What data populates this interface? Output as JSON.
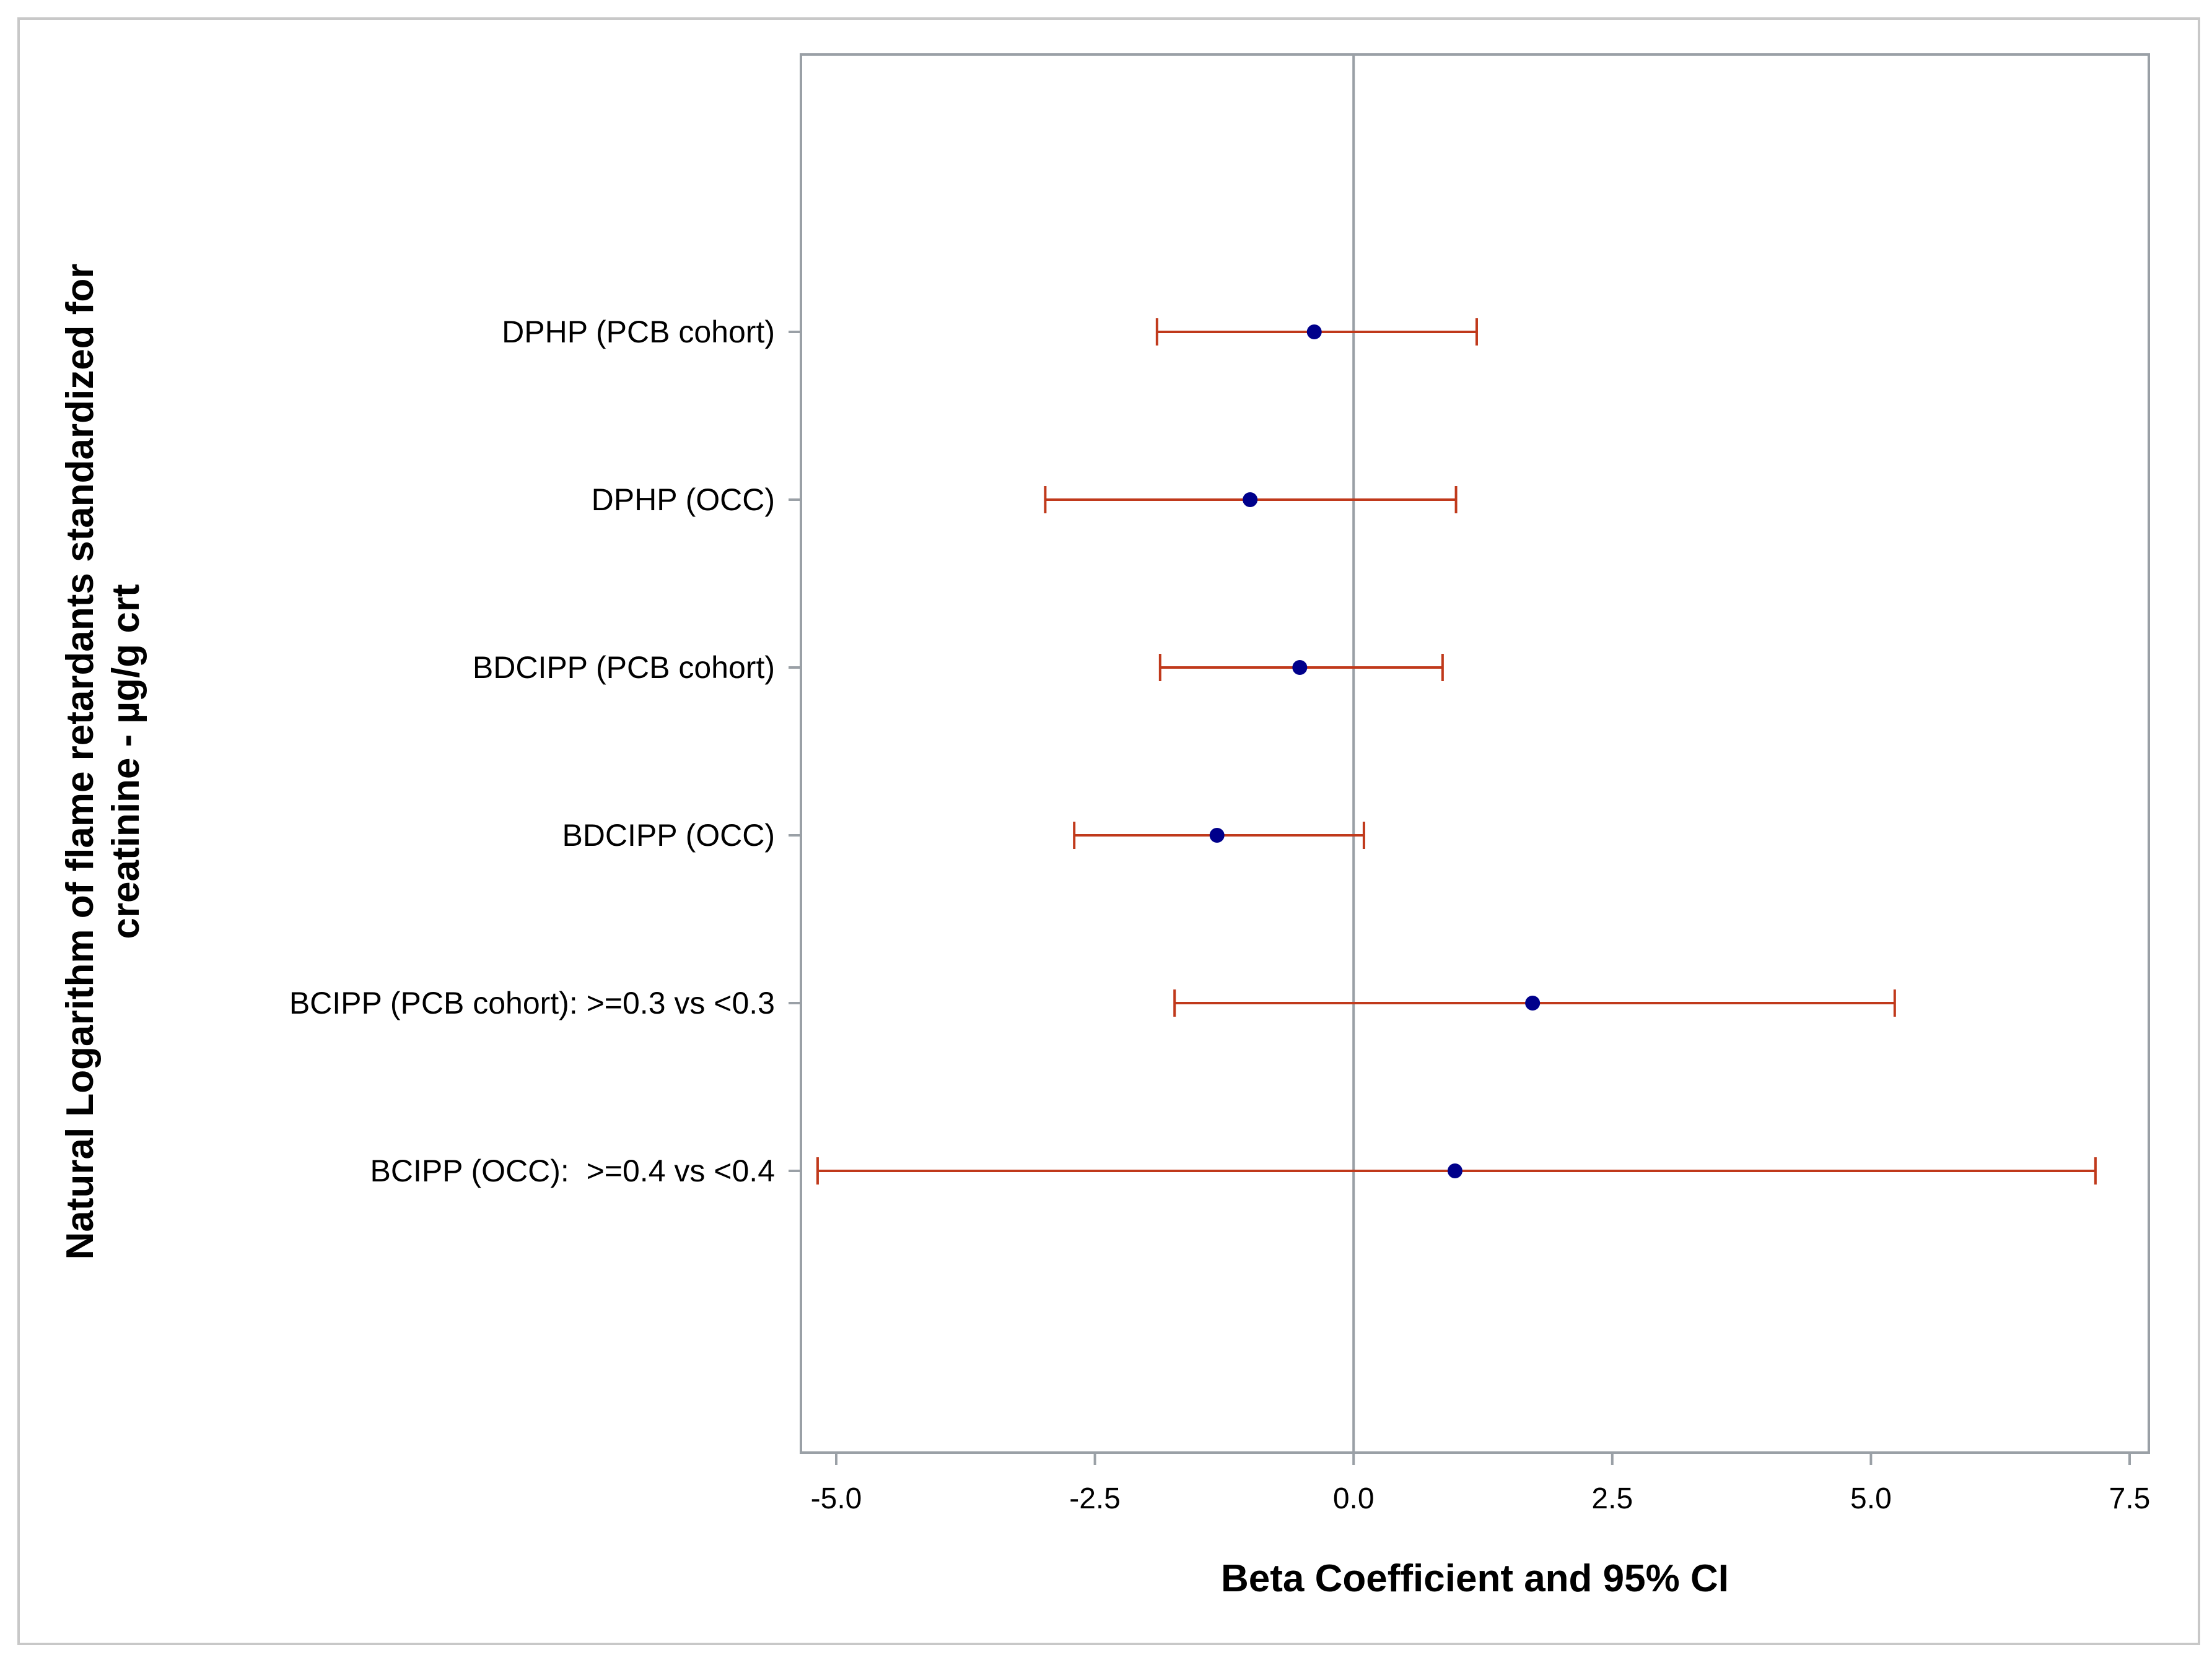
{
  "chart_data": {
    "type": "scatter",
    "subtype": "forest-plot",
    "title": "",
    "xlabel": "Beta Coefficient and 95% CI",
    "ylabel": "Natural Logarithm of flame retardants standardized for creatinine - µg/g crt",
    "ylabel_lines": [
      "Natural Logarithm of flame retardants standardized for",
      "creatinine - µg/g crt"
    ],
    "xlim": [
      -5.2,
      7.8
    ],
    "x_ticks": [
      -5.0,
      -2.5,
      0.0,
      2.5,
      5.0,
      7.5
    ],
    "x_tick_labels": [
      "-5.0",
      "-2.5",
      "0.0",
      "2.5",
      "5.0",
      "7.5"
    ],
    "reference_line": 0.0,
    "categories": [
      "DPHP (PCB cohort)",
      "DPHP (OCC)",
      "BDCIPP (PCB cohort)",
      "BDCIPP (OCC)",
      "BCIPP (PCB cohort): >=0.3 vs <0.3",
      "BCIPP (OCC):  >=0.4 vs <0.4"
    ],
    "estimates": [
      -0.38,
      -1.0,
      -0.52,
      -1.32,
      1.73,
      0.98
    ],
    "ci_lower": [
      -1.9,
      -2.98,
      -1.87,
      -2.7,
      -1.73,
      -5.18
    ],
    "ci_upper": [
      1.19,
      0.99,
      0.86,
      0.1,
      5.23,
      7.17
    ],
    "colors": {
      "point": "#00008b",
      "ci": "#c0391b",
      "frame": "#9aa0a6",
      "outer_border": "#c8c8c8"
    }
  }
}
